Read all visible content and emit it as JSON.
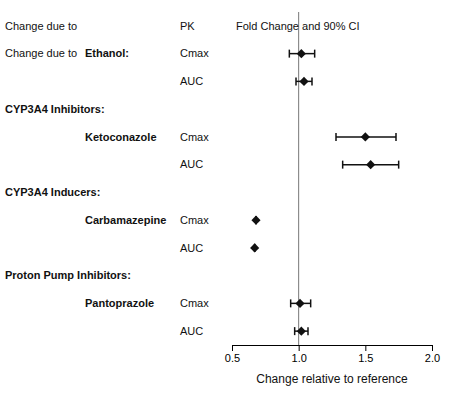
{
  "chart_data": {
    "type": "forest",
    "xlabel": "Change relative to reference",
    "xlim": [
      0.5,
      2.0
    ],
    "xticks": [
      0.5,
      {
        "value": 1.0,
        "label": "1.0"
      },
      1.5,
      {
        "value": 2.0,
        "label": "2.0"
      }
    ],
    "reference_line": 1.0,
    "headers": [
      "Change due to",
      "PK",
      "Fold Change and 90% CI"
    ],
    "color": "#111111",
    "rows": [
      {
        "group": "Change due to",
        "drug": "Ethanol:",
        "pk": "Cmax",
        "center": 1.02,
        "ci_lo": 0.93,
        "ci_hi": 1.12
      },
      {
        "group": null,
        "drug": null,
        "pk": "AUC",
        "center": 1.04,
        "ci_lo": 0.98,
        "ci_hi": 1.1
      },
      {
        "group": "CYP3A4 Inhibitors:",
        "drug": null,
        "pk": null,
        "center": null,
        "ci_lo": null,
        "ci_hi": null
      },
      {
        "group": null,
        "drug": "Ketoconazole",
        "pk": "Cmax",
        "center": 1.5,
        "ci_lo": 1.28,
        "ci_hi": 1.73
      },
      {
        "group": null,
        "drug": null,
        "pk": "AUC",
        "center": 1.54,
        "ci_lo": 1.33,
        "ci_hi": 1.75
      },
      {
        "group": "CYP3A4 Inducers:",
        "drug": null,
        "pk": null,
        "center": null,
        "ci_lo": null,
        "ci_hi": null
      },
      {
        "group": null,
        "drug": "Carbamazepine",
        "pk": "Cmax",
        "center": 0.68,
        "ci_lo": 0.68,
        "ci_hi": 0.68
      },
      {
        "group": null,
        "drug": null,
        "pk": "AUC",
        "center": 0.67,
        "ci_lo": 0.67,
        "ci_hi": 0.67
      },
      {
        "group": "Proton Pump Inhibitors:",
        "drug": null,
        "pk": null,
        "center": null,
        "ci_lo": null,
        "ci_hi": null
      },
      {
        "group": null,
        "drug": "Pantoprazole",
        "pk": "Cmax",
        "center": 1.01,
        "ci_lo": 0.94,
        "ci_hi": 1.09
      },
      {
        "group": null,
        "drug": null,
        "pk": "AUC",
        "center": 1.02,
        "ci_lo": 0.97,
        "ci_hi": 1.07
      }
    ]
  }
}
